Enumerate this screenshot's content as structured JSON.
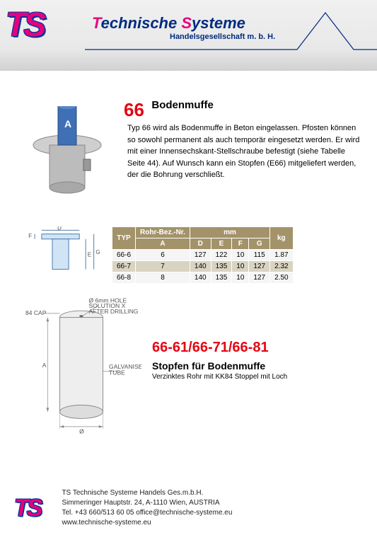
{
  "colors": {
    "brand_pink": "#e6007e",
    "brand_blue": "#002b7f",
    "accent_red": "#e30613",
    "table_header": "#a3936a",
    "table_alt": "#d9d3c2",
    "metal_gray": "#b8b8b8",
    "tube_blue": "#3f6fb5"
  },
  "header": {
    "logo": "TS",
    "title_t": "T",
    "title_rest1": "echnische ",
    "title_s": "S",
    "title_rest2": "ysteme",
    "subtitle": "Handelsgesellschaft m. b. H."
  },
  "product1": {
    "number": "66",
    "title": "Bodenmuffe",
    "description": "Typ 66 wird als Bodenmuffe in Beton eingelassen. Pfosten können so sowohl permanent als auch temporär eingesetzt werden. Er wird mit einer Innensechskant-Stellschraube befestigt (siehe Tabelle Seite 44). Auf Wunsch kann ein Stopfen (E66) mitgeliefert werden, der die Bohrung verschließt.",
    "socket_label": "A"
  },
  "dim_diagram": {
    "labels": {
      "D": "D",
      "E": "E",
      "F": "F",
      "G": "G"
    }
  },
  "spec_table": {
    "headers": {
      "typ": "TYP",
      "rohr": "Rohr-Bez.-Nr.",
      "rohr_sub": "A",
      "mm": "mm",
      "mm_cols": [
        "D",
        "E",
        "F",
        "G"
      ],
      "kg": "kg"
    },
    "rows": [
      {
        "typ": "66-6",
        "a": "6",
        "d": "127",
        "e": "122",
        "f": "10",
        "g": "115",
        "kg": "1.87",
        "alt": false
      },
      {
        "typ": "66-7",
        "a": "7",
        "d": "140",
        "e": "135",
        "f": "10",
        "g": "127",
        "kg": "2.32",
        "alt": true
      },
      {
        "typ": "66-8",
        "a": "8",
        "d": "140",
        "e": "135",
        "f": "10",
        "g": "127",
        "kg": "2.50",
        "alt": false
      }
    ]
  },
  "tube_drawing": {
    "cap_label": "84 CAP",
    "hole_label1": "Ø 6mm HOLE",
    "hole_label2": "SOLUTION X",
    "hole_label3": "AFTER DRILLING",
    "tube_label1": "GALVANISED",
    "tube_label2": "TUBE",
    "dim_a": "A",
    "dim_phi": "Ø"
  },
  "product2": {
    "code": "66-61/66-71/66-81",
    "title": "Stopfen für Bodenmuffe",
    "desc": "Verzinktes Rohr mit KK84 Stoppel mit Loch"
  },
  "footer": {
    "logo": "TS",
    "line1": "TS Technische Systeme Handels Ges.m.b.H.",
    "line2": "Simmeringer Hauptstr. 24, A-1110  Wien, AUSTRIA",
    "line3": "Tel. +43 660/513 60 05 office@technische-systeme.eu",
    "line4": "www.technische-systeme.eu"
  }
}
